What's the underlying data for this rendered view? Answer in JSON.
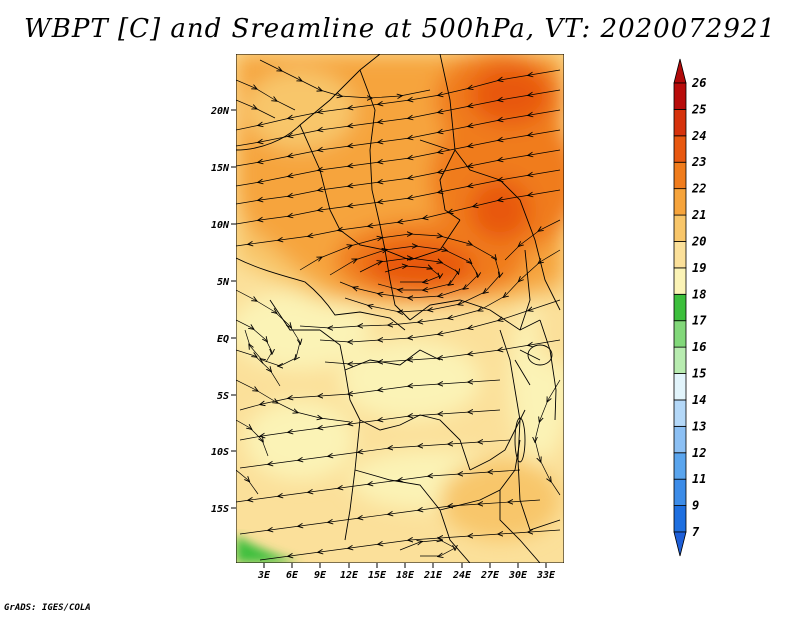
{
  "title": "WBPT [C] and Sreamline at 500hPa, VT: 2020072921",
  "footer": "GrADS: IGES/COLA",
  "map": {
    "variable": "WBPT [C]",
    "overlay": "Streamline",
    "level": "500hPa",
    "valid_time": "2020072921",
    "lat_ticks": [
      "20N",
      "15N",
      "10N",
      "5N",
      "EQ",
      "5S",
      "10S",
      "15S"
    ],
    "lon_ticks": [
      "3E",
      "6E",
      "9E",
      "12E",
      "15E",
      "18E",
      "21E",
      "24E",
      "27E",
      "30E",
      "33E"
    ]
  },
  "colorbar": {
    "labels": [
      "7",
      "9",
      "11",
      "12",
      "13",
      "14",
      "15",
      "16",
      "17",
      "18",
      "19",
      "20",
      "21",
      "22",
      "23",
      "24",
      "25",
      "26"
    ],
    "colors": [
      "#1e6fe0",
      "#3c8ce8",
      "#5aa5ee",
      "#8cc0f4",
      "#b4d8f8",
      "#e2f4fb",
      "#b8ecb0",
      "#82d87a",
      "#3cbf3c",
      "#fbf3b6",
      "#fbe09a",
      "#f8c66a",
      "#f6a43c",
      "#f07c1c",
      "#e85810",
      "#d6320c",
      "#b80c0a"
    ],
    "min_color": "#1e5fd8",
    "max_color": "#b00a0a"
  },
  "colors": {
    "north_high": "#e85810",
    "north_mid": "#f07c1c",
    "north_low": "#f6a43c",
    "south_base": "#fbe09a",
    "south_pale": "#fbf3b6",
    "green_patch": "#3cbf3c"
  }
}
